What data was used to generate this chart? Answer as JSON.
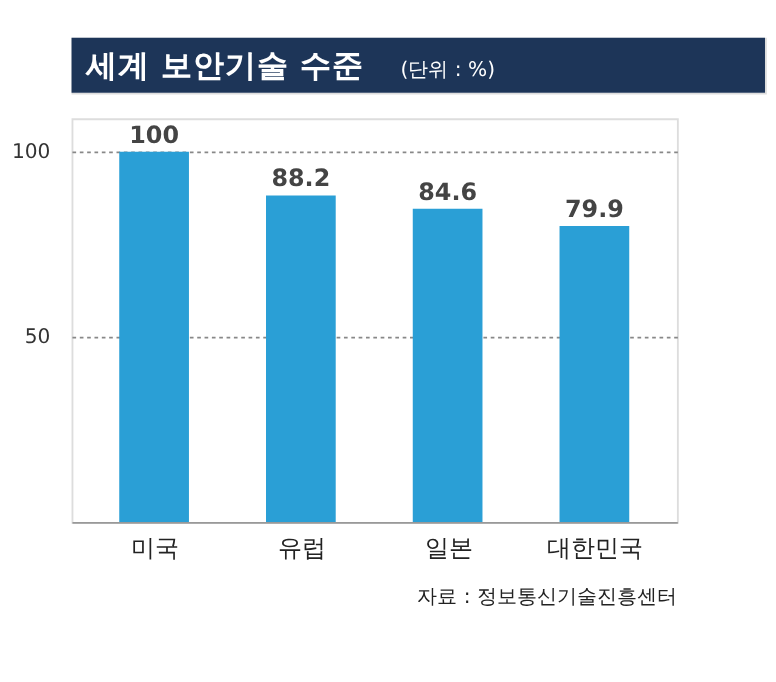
{
  "chart_data": {
    "type": "bar",
    "title": "세계 보안기술 수준",
    "subtitle": "(단위 : %)",
    "categories": [
      "미국",
      "유럽",
      "일본",
      "대한민국"
    ],
    "values": [
      100,
      88.2,
      84.6,
      79.9
    ],
    "color": "#2a9fd6",
    "ylim": [
      0,
      109
    ],
    "yticks": [
      50,
      100
    ],
    "grid": "y",
    "data_labels": true,
    "annotations": [
      "자료 : 정보통신기술진흥센터"
    ]
  }
}
